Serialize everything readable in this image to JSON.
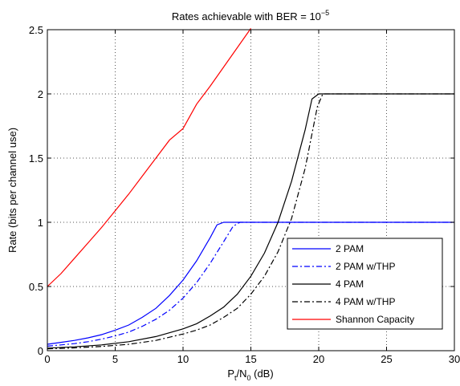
{
  "chart_data": {
    "type": "line",
    "title": {
      "base": "Rates achievable with BER = 10",
      "sup": "−5"
    },
    "xlabel": {
      "p": "P",
      "t": "t",
      "slash": "/N",
      "zero": "0",
      "unit": " (dB)"
    },
    "ylabel": "Rate (bits per channel use)",
    "xlim": [
      0,
      30
    ],
    "ylim": [
      0,
      2.5
    ],
    "xticks": [
      0,
      5,
      10,
      15,
      20,
      25,
      30
    ],
    "yticks": [
      0,
      0.5,
      1,
      1.5,
      2,
      2.5
    ],
    "xtick_labels": [
      "0",
      "5",
      "10",
      "15",
      "20",
      "25",
      "30"
    ],
    "ytick_labels": [
      "0",
      "0.5",
      "1",
      "1.5",
      "2",
      "2.5"
    ],
    "grid": true,
    "legend_position": "lower-right",
    "series": [
      {
        "name": "2 PAM",
        "color": "#0000ff",
        "dash": "solid",
        "x": [
          0,
          1,
          2,
          3,
          4,
          5,
          6,
          7,
          8,
          9,
          10,
          11,
          12,
          12.5,
          13,
          14,
          16,
          20,
          25,
          30
        ],
        "y": [
          0.05,
          0.065,
          0.08,
          0.1,
          0.125,
          0.16,
          0.2,
          0.26,
          0.33,
          0.43,
          0.55,
          0.7,
          0.88,
          0.98,
          1,
          1,
          1,
          1,
          1,
          1
        ]
      },
      {
        "name": "2 PAM w/THP",
        "color": "#0000ff",
        "dash": "dashdot",
        "x": [
          0,
          1,
          2,
          3,
          4,
          5,
          6,
          7,
          8,
          9,
          10,
          11,
          12,
          13,
          13.7,
          14.2,
          16,
          20,
          25,
          30
        ],
        "y": [
          0.035,
          0.045,
          0.055,
          0.07,
          0.09,
          0.115,
          0.145,
          0.19,
          0.245,
          0.315,
          0.41,
          0.53,
          0.68,
          0.85,
          0.97,
          1,
          1,
          1,
          1,
          1
        ]
      },
      {
        "name": "4 PAM",
        "color": "#000000",
        "dash": "solid",
        "x": [
          0,
          2,
          4,
          6,
          8,
          10,
          11,
          12,
          13,
          14,
          15,
          16,
          17,
          18,
          19,
          19.5,
          20,
          25,
          30
        ],
        "y": [
          0.02,
          0.03,
          0.045,
          0.07,
          0.11,
          0.17,
          0.21,
          0.27,
          0.34,
          0.44,
          0.58,
          0.76,
          1.0,
          1.32,
          1.72,
          1.96,
          2,
          2,
          2
        ]
      },
      {
        "name": "4 PAM w/THP",
        "color": "#000000",
        "dash": "dashdot",
        "x": [
          0,
          2,
          4,
          6,
          8,
          10,
          11,
          12,
          13,
          14,
          15,
          16,
          17,
          18,
          19,
          19.9,
          20.3,
          25,
          30
        ],
        "y": [
          0.015,
          0.022,
          0.033,
          0.05,
          0.08,
          0.13,
          0.16,
          0.2,
          0.26,
          0.33,
          0.44,
          0.58,
          0.77,
          1.03,
          1.42,
          1.9,
          2,
          2,
          2
        ]
      },
      {
        "name": "Shannon Capacity",
        "color": "#ff0000",
        "dash": "solid",
        "x": [
          0,
          1,
          2,
          3,
          4,
          5,
          6,
          7,
          8,
          9,
          10,
          11,
          12,
          13,
          14,
          15
        ],
        "y": [
          0.5,
          0.6,
          0.72,
          0.84,
          0.96,
          1.09,
          1.22,
          1.36,
          1.5,
          1.64,
          1.73,
          1.92,
          2.06,
          2.21,
          2.36,
          2.51
        ]
      }
    ]
  }
}
